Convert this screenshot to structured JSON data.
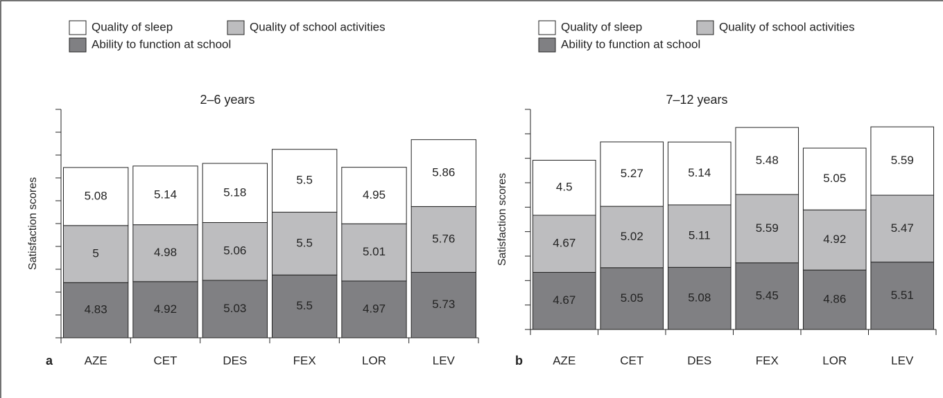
{
  "chart_data": [
    {
      "type": "bar",
      "stacked": true,
      "label": "a",
      "title": "2–6 years",
      "ylabel": "Satisfaction scores",
      "categories": [
        "AZE",
        "CET",
        "DES",
        "FEX",
        "LOR",
        "LEV"
      ],
      "series": [
        {
          "name": "Ability to function at school",
          "color": "#808083",
          "values": [
            4.83,
            4.92,
            5.03,
            5.5,
            4.97,
            5.73
          ]
        },
        {
          "name": "Quality of school activities",
          "color": "#bdbdbf",
          "values": [
            5,
            4.98,
            5.06,
            5.5,
            5.01,
            5.76
          ]
        },
        {
          "name": "Quality of sleep",
          "color": "#ffffff",
          "values": [
            5.08,
            5.14,
            5.18,
            5.5,
            4.95,
            5.86
          ]
        }
      ],
      "ylim": [
        0,
        20
      ],
      "yticks": [
        0,
        2,
        4,
        6,
        8,
        10,
        12,
        14,
        16,
        18,
        20
      ]
    },
    {
      "type": "bar",
      "stacked": true,
      "label": "b",
      "title": "7–12 years",
      "ylabel": "Satisfaction scores",
      "categories": [
        "AZE",
        "CET",
        "DES",
        "FEX",
        "LOR",
        "LEV"
      ],
      "series": [
        {
          "name": "Ability to function at school",
          "color": "#808083",
          "values": [
            4.67,
            5.05,
            5.08,
            5.45,
            4.86,
            5.51
          ]
        },
        {
          "name": "Quality of school activities",
          "color": "#bdbdbf",
          "values": [
            4.67,
            5.02,
            5.11,
            5.59,
            4.92,
            5.47
          ]
        },
        {
          "name": "Quality of sleep",
          "color": "#ffffff",
          "values": [
            4.5,
            5.27,
            5.14,
            5.48,
            5.05,
            5.59
          ]
        }
      ],
      "ylim": [
        0,
        18
      ],
      "yticks": [
        0,
        2,
        4,
        6,
        8,
        10,
        12,
        14,
        16,
        18
      ]
    }
  ]
}
